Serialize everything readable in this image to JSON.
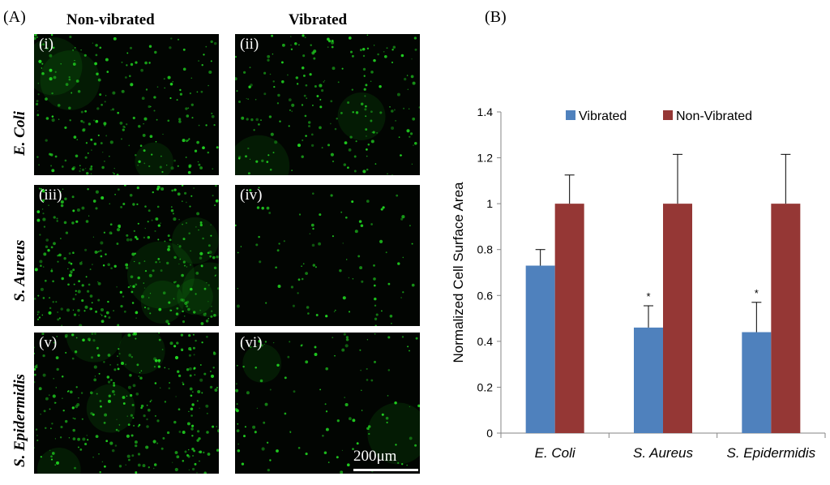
{
  "figure": {
    "panel_a_label": "(A)",
    "panel_b_label": "(B)",
    "col_headers": [
      "Non-vibrated",
      "Vibrated"
    ],
    "row_labels": [
      "E. Coli",
      "S. Aureus",
      "S. Epidermidis"
    ],
    "image_labels": [
      "(i)",
      "(ii)",
      "(iii)",
      "(iv)",
      "(v)",
      "(vi)"
    ],
    "scale_bar_label": "200μm",
    "stain_color": "#22dd22"
  },
  "chart_data": {
    "type": "bar",
    "categories": [
      "E. Coli",
      "S. Aureus",
      "S. Epidermidis"
    ],
    "series": [
      {
        "name": "Vibrated",
        "values": [
          0.73,
          0.46,
          0.44
        ],
        "errors": [
          0.07,
          0.095,
          0.13
        ],
        "color": "#4f81bd",
        "significance": [
          "",
          "*",
          "*"
        ]
      },
      {
        "name": "Non-Vibrated",
        "values": [
          1.0,
          1.0,
          1.0
        ],
        "errors": [
          0.125,
          0.215,
          0.215
        ],
        "color": "#953735",
        "significance": [
          "",
          "",
          ""
        ]
      }
    ],
    "ylabel": "Normalized Cell Surface Area",
    "xlabel": "",
    "ylim": [
      0,
      1.4
    ],
    "yticks": [
      "0",
      "0.2",
      "0.4",
      "0.6",
      "0.8",
      "1",
      "1.2",
      "1.4"
    ],
    "grid": false,
    "legend_position": "top"
  }
}
